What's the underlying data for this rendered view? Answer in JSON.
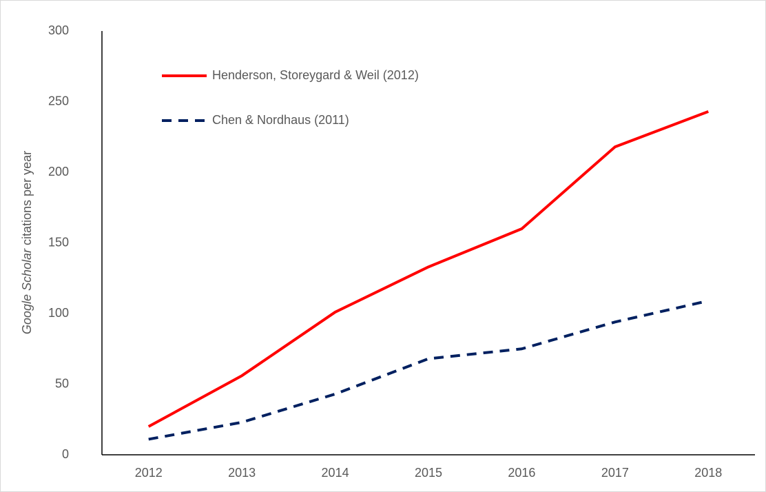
{
  "chart_data": {
    "type": "line",
    "y_label": {
      "italic": "Google Scholar",
      "rest": "citations per year"
    },
    "categories": [
      "2012",
      "2013",
      "2014",
      "2015",
      "2016",
      "2017",
      "2018"
    ],
    "series": [
      {
        "name": "Henderson, Storeygard & Weil (2012)",
        "color": "#ff0000",
        "dash": "solid",
        "values": [
          20,
          56,
          101,
          133,
          160,
          218,
          243
        ]
      },
      {
        "name": "Chen & Nordhaus (2011)",
        "color": "#002060",
        "dash": "dashed",
        "values": [
          11,
          23,
          43,
          68,
          75,
          94,
          109
        ]
      }
    ],
    "ylim": [
      0,
      300
    ],
    "yticks": [
      0,
      50,
      100,
      150,
      200,
      250,
      300
    ],
    "grid": false
  }
}
